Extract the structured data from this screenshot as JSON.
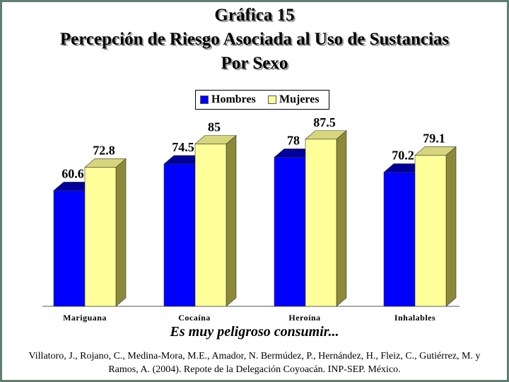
{
  "title_lines": [
    "Gráfica 15",
    "Percepción de Riesgo Asociada al Uso de Sustancias",
    "Por Sexo"
  ],
  "subtitle": "Es muy peligroso consumir...",
  "source": "Villatoro, J., Rojano, C., Medina-Mora, M.E., Amador, N. Bermúdez, P., Hernández, H., Fleiz, C., Gutiérrez, M. y Ramos, A. (2004). Repote de la Delegación Coyoacán. INP-SEP. México.",
  "chart_data": {
    "type": "bar",
    "categories": [
      "Mariguana",
      "Cocaína",
      "Heroína",
      "Inhalables"
    ],
    "series": [
      {
        "name": "Hombres",
        "values": [
          60.6,
          74.5,
          78,
          70.2
        ],
        "labels": [
          "60.6",
          "74.5",
          "78",
          "70.2"
        ],
        "color": "#0000ff"
      },
      {
        "name": "Mujeres",
        "values": [
          72.8,
          85,
          87.5,
          79.1
        ],
        "labels": [
          "72.8",
          "85",
          "87.5",
          "79.1"
        ],
        "color": "#ffff99"
      }
    ],
    "ylim": [
      0,
      100
    ],
    "grid": false,
    "legend": "top-center",
    "style": "3d"
  }
}
